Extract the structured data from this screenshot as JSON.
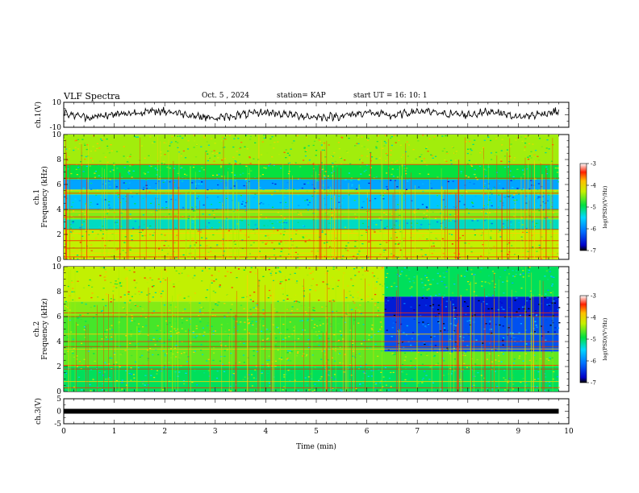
{
  "header": {
    "title": "VLF Spectra",
    "date": "Oct. 5 , 2024",
    "station": "station= KAP",
    "start_ut": "start UT =  16: 10: 1"
  },
  "chart_data": [
    {
      "type": "line",
      "panel": "ch1-waveform",
      "ylabel": "ch.1(V)",
      "ylim": [
        -10,
        10
      ],
      "yticks": [
        "10",
        "-10"
      ],
      "xlim": [
        0,
        10
      ],
      "series": [
        {
          "x": [
            0,
            0.5,
            1,
            1.5,
            2,
            2.5,
            3,
            3.5,
            4,
            4.5,
            5,
            5.5,
            6,
            6.5,
            7,
            7.5,
            8,
            8.5,
            9,
            9.5,
            9.8
          ],
          "values": [
            1,
            -2,
            0,
            2,
            3,
            0,
            -3,
            0,
            2,
            0,
            -2,
            -1,
            2,
            -1,
            3,
            1,
            0,
            3,
            -2,
            1,
            3
          ]
        }
      ]
    },
    {
      "type": "heatmap",
      "panel": "ch1-spectrogram",
      "ylabel": "ch.1\nFrequency (kHz)",
      "ylim": [
        0,
        10
      ],
      "yticks": [
        "0",
        "2",
        "4",
        "6",
        "8",
        "10"
      ],
      "xlim": [
        0,
        10
      ],
      "data_end_min": 9.8,
      "colorbar": {
        "label": "log(PSD)(V²/Hz)",
        "range": [
          -7,
          -3
        ],
        "ticks": [
          "-3",
          "-4",
          "-5",
          "-6",
          "-7"
        ]
      },
      "bands": [
        {
          "from_khz": 0,
          "to_khz": 2.4,
          "level": -4.3
        },
        {
          "from_khz": 2.4,
          "to_khz": 3.2,
          "level": -5.3
        },
        {
          "from_khz": 3.2,
          "to_khz": 4.0,
          "level": -4.5
        },
        {
          "from_khz": 4.0,
          "to_khz": 5.2,
          "level": -5.6
        },
        {
          "from_khz": 5.2,
          "to_khz": 5.6,
          "level": -4.5
        },
        {
          "from_khz": 5.6,
          "to_khz": 6.4,
          "level": -5.8
        },
        {
          "from_khz": 6.4,
          "to_khz": 7.6,
          "level": -4.9
        },
        {
          "from_khz": 7.6,
          "to_khz": 10,
          "level": -4.4
        }
      ],
      "lines_khz": [
        0.2,
        0.5,
        0.9,
        1.5,
        2.1,
        2.4,
        3.4,
        3.8,
        4.0,
        5.3,
        5.5,
        6.5,
        7.6
      ]
    },
    {
      "type": "heatmap",
      "panel": "ch2-spectrogram",
      "ylabel": "ch.2\nFrequency (kHz)",
      "ylim": [
        0,
        10
      ],
      "yticks": [
        "0",
        "2",
        "4",
        "6",
        "8",
        "10"
      ],
      "xlim": [
        0,
        10
      ],
      "data_end_min": 9.8,
      "change_min": 6.35,
      "colorbar": {
        "label": "log(PSD)(V²/Hz)",
        "range": [
          -7,
          -3
        ],
        "ticks": [
          "-3",
          "-4",
          "-5",
          "-6",
          "-7"
        ]
      },
      "bands_before": [
        {
          "from_khz": 0,
          "to_khz": 2.0,
          "level": -5.0
        },
        {
          "from_khz": 2.0,
          "to_khz": 3.4,
          "level": -4.6
        },
        {
          "from_khz": 3.4,
          "to_khz": 6.0,
          "level": -4.7
        },
        {
          "from_khz": 6.0,
          "to_khz": 7.2,
          "level": -4.5
        },
        {
          "from_khz": 7.2,
          "to_khz": 10,
          "level": -4.3
        }
      ],
      "bands_after": [
        {
          "from_khz": 0,
          "to_khz": 2.0,
          "level": -5.0
        },
        {
          "from_khz": 2.0,
          "to_khz": 3.2,
          "level": -4.6
        },
        {
          "from_khz": 3.2,
          "to_khz": 6.0,
          "level": -6.3
        },
        {
          "from_khz": 6.0,
          "to_khz": 7.6,
          "level": -6.6
        },
        {
          "from_khz": 7.6,
          "to_khz": 10,
          "level": -5.0
        }
      ],
      "lines_khz": [
        0.3,
        0.8,
        1.8,
        2.1,
        3.4,
        3.6,
        4.0,
        4.6,
        6.0,
        6.3
      ]
    },
    {
      "type": "line",
      "panel": "ch3-waveform",
      "ylabel": "ch.3(V)",
      "ylim": [
        -5,
        5
      ],
      "yticks": [
        "5",
        "0",
        "-5"
      ],
      "xlim": [
        0,
        10
      ],
      "xlabel": "Time  (min)",
      "xticks": [
        "0",
        "1",
        "2",
        "3",
        "4",
        "5",
        "6",
        "7",
        "8",
        "9",
        "10"
      ],
      "series": [
        {
          "x": [
            0,
            9.8
          ],
          "values": [
            0,
            0
          ]
        }
      ]
    }
  ]
}
